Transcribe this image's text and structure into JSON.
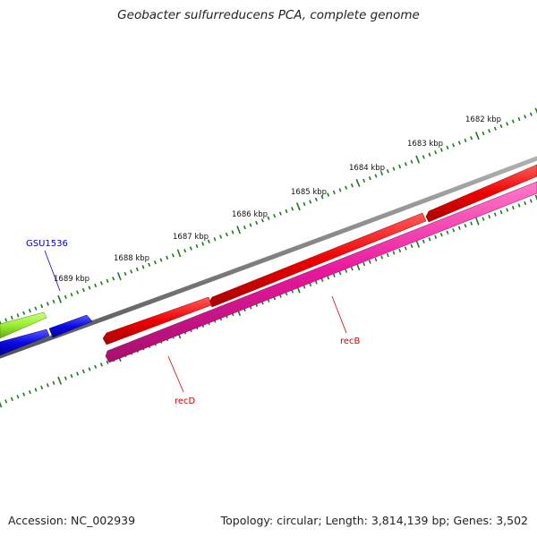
{
  "title": "Geobacter sulfurreducens PCA, complete genome",
  "footer": {
    "accession": "Accession: NC_002939",
    "summary": "Topology: circular; Length: 3,814,139 bp; Genes: 3,502"
  },
  "scale": {
    "labels": [
      "1682 kbp",
      "1683 kbp",
      "1684 kbp",
      "1685 kbp",
      "1686 kbp",
      "1687 kbp",
      "1688 kbp",
      "1689 kbp"
    ],
    "tick_color": "#1a7a1a"
  },
  "backbone_color": "#808080",
  "features": [
    {
      "name": "recB",
      "strand": "forward",
      "color": "#ee0000",
      "label_color": "#cc0000"
    },
    {
      "name": "recD",
      "strand": "reverse",
      "color": "#e8179c",
      "label_color": "#cc0000"
    },
    {
      "name": "GSU1536",
      "strand": "forward",
      "color": "#0a0ae6",
      "label_color": "#0000cc"
    },
    {
      "name": "",
      "strand": "forward",
      "color": "#99ee33"
    },
    {
      "name": "",
      "strand": "reverse",
      "color": "#0a0ae6"
    }
  ]
}
